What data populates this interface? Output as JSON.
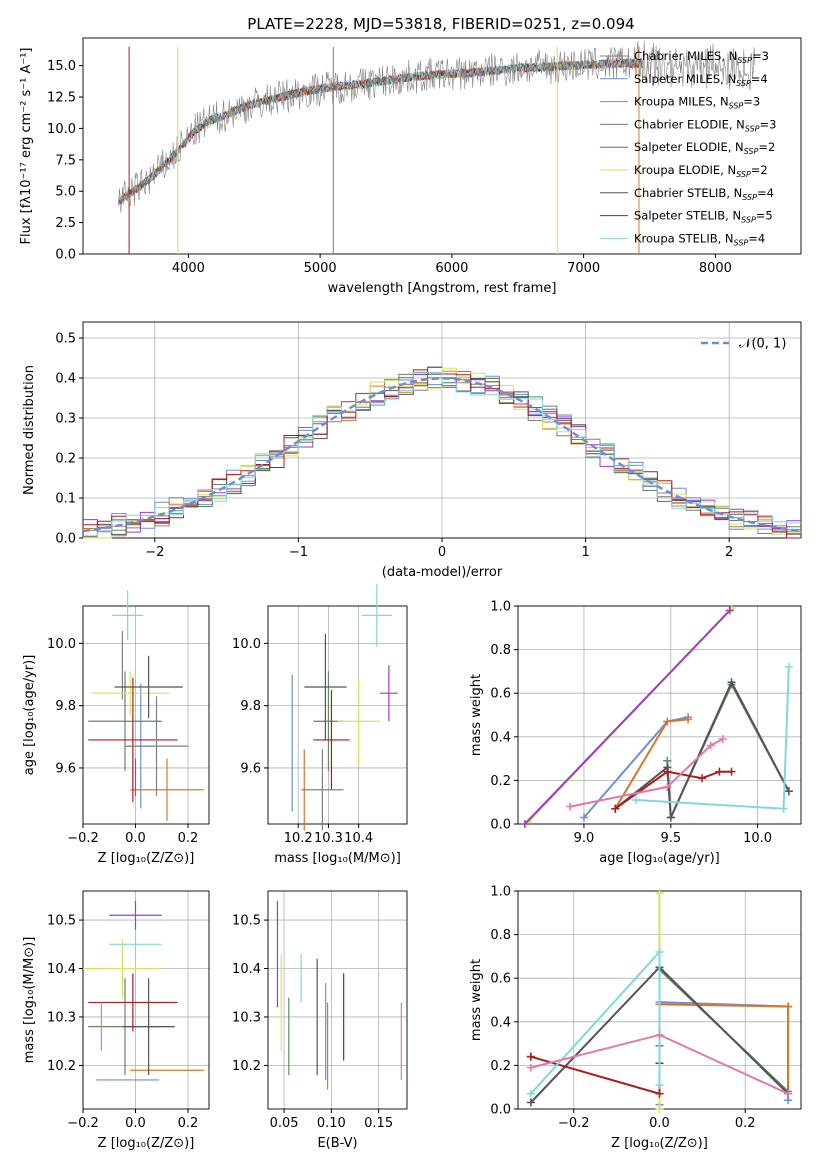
{
  "title": "PLATE=2228, MJD=53818, FIBERID=0251, z=0.094",
  "series": [
    {
      "label_main": "Chabrier MILES, N",
      "label_sub": "SSP",
      "label_val": "=3",
      "color": "#808080"
    },
    {
      "label_main": "Salpeter MILES, N",
      "label_sub": "SSP",
      "label_val": "=4",
      "color": "#6b8fd8"
    },
    {
      "label_main": "Kroupa MILES, N",
      "label_sub": "SSP",
      "label_val": "=3",
      "color": "#d9782a"
    },
    {
      "label_main": "Chabrier ELODIE, N",
      "label_sub": "SSP",
      "label_val": "=3",
      "color": "#5e8a62"
    },
    {
      "label_main": "Salpeter ELODIE, N",
      "label_sub": "SSP",
      "label_val": "=2",
      "color": "#a03ac8"
    },
    {
      "label_main": "Kroupa ELODIE, N",
      "label_sub": "SSP",
      "label_val": "=2",
      "color": "#d8e25a"
    },
    {
      "label_main": "Chabrier STELIB, N",
      "label_sub": "SSP",
      "label_val": "=4",
      "color": "#555555"
    },
    {
      "label_main": "Salpeter STELIB, N",
      "label_sub": "SSP",
      "label_val": "=5",
      "color": "#b01a1a"
    },
    {
      "label_main": "Kroupa STELIB, N",
      "label_sub": "SSP",
      "label_val": "=4",
      "color": "#7fd8dc"
    }
  ],
  "chart_data": [
    {
      "id": "spectrum",
      "type": "line",
      "xlabel": "wavelength [Angstrom, rest frame]",
      "ylabel": "Flux [fλ10⁻¹⁷ erg cm⁻² s⁻¹ A⁻¹]",
      "xlim": [
        3200,
        8650
      ],
      "ylim": [
        0,
        17.2
      ],
      "xticks": [
        4000,
        5000,
        6000,
        7000,
        8000
      ],
      "yticks": [
        0.0,
        2.5,
        5.0,
        7.5,
        10.0,
        12.5,
        15.0
      ],
      "x": [
        3470,
        3550,
        3650,
        3750,
        3850,
        3950,
        4050,
        4150,
        4250,
        4350,
        4450,
        4550,
        4700,
        4900,
        5100,
        5300,
        5500,
        5700,
        5900,
        6100,
        6300,
        6500,
        6700,
        6900,
        7100,
        7300,
        7500,
        7700,
        7900,
        8100,
        8300
      ],
      "y": [
        4.2,
        4.8,
        5.5,
        6.4,
        7.4,
        8.6,
        9.8,
        10.6,
        10.9,
        11.4,
        11.8,
        12.1,
        12.5,
        13.0,
        13.3,
        13.5,
        13.8,
        14.1,
        14.3,
        14.4,
        14.6,
        14.8,
        14.9,
        15.0,
        15.1,
        15.2,
        15.1,
        15.0,
        14.9,
        14.8,
        14.7
      ],
      "grid": false,
      "legend": "right"
    },
    {
      "id": "residuals",
      "type": "histogram",
      "xlabel": "(data-model)/error",
      "ylabel": "Normed distribution",
      "xlim": [
        -2.5,
        2.5
      ],
      "ylim": [
        0,
        0.54
      ],
      "xticks": [
        -2,
        -1,
        0,
        1,
        2
      ],
      "yticks": [
        0.0,
        0.1,
        0.2,
        0.3,
        0.4,
        0.5
      ],
      "bin_width": 0.1,
      "reference_curve": {
        "label": "𝒩(0, 1)",
        "mean": 0,
        "sigma": 1,
        "color": "#6a8fd8"
      },
      "grid": true,
      "legend": "top-right"
    },
    {
      "id": "age_vs_Z",
      "type": "scatter",
      "xlabel": "Z [log₁₀(Z/Z⊙)]",
      "ylabel": "age  [log₁₀(age/yr)]",
      "xlim": [
        -0.2,
        0.28
      ],
      "ylim": [
        9.42,
        10.12
      ],
      "xticks": [
        -0.2,
        0.0,
        0.2
      ],
      "yticks": [
        9.6,
        9.8,
        10.0
      ],
      "points": [
        {
          "s": 0,
          "x": -0.05,
          "y": 9.93,
          "xe": 0,
          "ye": 0.11
        },
        {
          "s": 1,
          "x": 0.02,
          "y": 9.67,
          "xe": 0.05,
          "ye": 0.2
        },
        {
          "s": 2,
          "x": 0.12,
          "y": 9.53,
          "xe": 0.14,
          "ye": 0.1
        },
        {
          "s": 3,
          "x": -0.04,
          "y": 9.75,
          "xe": 0.14,
          "ye": 0.16
        },
        {
          "s": 4,
          "x": 0.0,
          "y": 9.57,
          "xe": 0,
          "ye": 0.06
        },
        {
          "s": 5,
          "x": -0.02,
          "y": 9.84,
          "xe": 0.15,
          "ye": 0.07
        },
        {
          "s": 6,
          "x": 0.05,
          "y": 9.86,
          "xe": 0.13,
          "ye": 0.1
        },
        {
          "s": 7,
          "x": -0.01,
          "y": 9.69,
          "xe": 0.17,
          "ye": 0.2
        },
        {
          "s": 8,
          "x": -0.03,
          "y": 10.09,
          "xe": 0.06,
          "ye": 0.08
        },
        {
          "s": 0,
          "x": 0.08,
          "y": 9.67,
          "xe": 0.12,
          "ye": 0.16
        }
      ],
      "grid": true
    },
    {
      "id": "age_vs_mass",
      "type": "scatter",
      "xlabel": "mass [log₁₀(M/M⊙)]",
      "ylabel": "",
      "xlim": [
        10.1,
        10.56
      ],
      "ylim": [
        9.42,
        10.12
      ],
      "xticks": [
        10.2,
        10.3,
        10.4
      ],
      "yticks": [
        9.6,
        9.8,
        10.0
      ],
      "points": [
        {
          "s": 1,
          "x": 10.18,
          "y": 9.68,
          "xe": 0,
          "ye": 0.22
        },
        {
          "s": 2,
          "x": 10.22,
          "y": 9.53,
          "xe": 0.0,
          "ye": 0.13
        },
        {
          "s": 3,
          "x": 10.3,
          "y": 9.75,
          "xe": 0.05,
          "ye": 0.16
        },
        {
          "s": 4,
          "x": 10.5,
          "y": 9.84,
          "xe": 0.03,
          "ye": 0.09
        },
        {
          "s": 5,
          "x": 10.4,
          "y": 9.75,
          "xe": 0.07,
          "ye": 0.14
        },
        {
          "s": 6,
          "x": 10.29,
          "y": 9.86,
          "xe": 0.07,
          "ye": 0.17
        },
        {
          "s": 7,
          "x": 10.31,
          "y": 9.69,
          "xe": 0.06,
          "ye": 0.16
        },
        {
          "s": 8,
          "x": 10.46,
          "y": 10.09,
          "xe": 0.05,
          "ye": 0.1
        },
        {
          "s": 0,
          "x": 10.28,
          "y": 9.53,
          "xe": 0.07,
          "ye": 0.13
        }
      ],
      "grid": true
    },
    {
      "id": "weight_vs_age",
      "type": "line",
      "xlabel": "age  [log₁₀(age/yr)]",
      "ylabel": "mass weight",
      "xlim": [
        8.62,
        10.25
      ],
      "ylim": [
        0,
        1
      ],
      "xticks": [
        9.0,
        9.5,
        10.0
      ],
      "yticks": [
        0.0,
        0.2,
        0.4,
        0.6,
        0.8,
        1.0
      ],
      "lines": [
        {
          "s": 1,
          "x": [
            9.0,
            9.48,
            9.6
          ],
          "y": [
            0.03,
            0.47,
            0.49
          ]
        },
        {
          "s": 2,
          "x": [
            9.18,
            9.48,
            9.6
          ],
          "y": [
            0.07,
            0.47,
            0.48
          ]
        },
        {
          "s": 3,
          "x": [
            9.48,
            9.5,
            9.85,
            10.18
          ],
          "y": [
            0.29,
            0.03,
            0.64,
            0.15
          ]
        },
        {
          "s": 5,
          "x": [
            8.68,
            9.85
          ],
          "y": [
            0.01,
            0.99
          ]
        },
        {
          "s": 4,
          "x": [
            8.66,
            9.84
          ],
          "y": [
            0.0,
            0.98
          ]
        },
        {
          "s": 6,
          "x": [
            9.18,
            9.48,
            9.5,
            9.85,
            10.18
          ],
          "y": [
            0.07,
            0.26,
            0.03,
            0.65,
            0.15
          ]
        },
        {
          "s": 7,
          "x": [
            9.18,
            9.48,
            9.68,
            9.78,
            9.85
          ],
          "y": [
            0.07,
            0.24,
            0.21,
            0.24,
            0.24
          ]
        },
        {
          "s": 8,
          "x": [
            9.3,
            10.15,
            10.18
          ],
          "y": [
            0.11,
            0.07,
            0.72
          ]
        },
        {
          "s": 9,
          "x": [
            8.92,
            9.48,
            9.73,
            9.8
          ],
          "y": [
            0.08,
            0.17,
            0.36,
            0.39
          ]
        }
      ],
      "grid": true
    },
    {
      "id": "mass_vs_Z",
      "type": "scatter",
      "xlabel": "Z [log₁₀(Z/Z⊙)]",
      "ylabel": "mass [log₁₀(M/M⊙)]",
      "xlim": [
        -0.2,
        0.28
      ],
      "ylim": [
        10.11,
        10.56
      ],
      "xticks": [
        -0.2,
        0.0,
        0.2
      ],
      "yticks": [
        10.2,
        10.3,
        10.4,
        10.5
      ],
      "points": [
        {
          "s": 1,
          "x": -0.03,
          "y": 10.17,
          "xe": 0.12,
          "ye": 0
        },
        {
          "s": 2,
          "x": 0.12,
          "y": 10.19,
          "xe": 0.14,
          "ye": 0
        },
        {
          "s": 3,
          "x": -0.04,
          "y": 10.28,
          "xe": 0.14,
          "ye": 0.1
        },
        {
          "s": 4,
          "x": 0.0,
          "y": 10.51,
          "xe": 0.1,
          "ye": 0.03
        },
        {
          "s": 5,
          "x": -0.05,
          "y": 10.4,
          "xe": 0.15,
          "ye": 0.06
        },
        {
          "s": 6,
          "x": 0.05,
          "y": 10.28,
          "xe": 0.1,
          "ye": 0.1
        },
        {
          "s": 7,
          "x": -0.01,
          "y": 10.33,
          "xe": 0.17,
          "ye": 0.06
        },
        {
          "s": 8,
          "x": 0.0,
          "y": 10.45,
          "xe": 0.1,
          "ye": 0.03
        },
        {
          "s": 9,
          "x": -0.13,
          "y": 10.28,
          "xe": 0,
          "ye": 0.05
        }
      ],
      "grid": true
    },
    {
      "id": "mass_vs_EBV",
      "type": "scatter",
      "xlabel": "E(B-V)",
      "ylabel": "",
      "xlim": [
        0.033,
        0.18
      ],
      "ylim": [
        10.11,
        10.56
      ],
      "xticks": [
        0.05,
        0.1,
        0.15
      ],
      "yticks": [
        10.2,
        10.3,
        10.4,
        10.5
      ],
      "points": [
        {
          "s": 4,
          "x": 0.043,
          "y": 10.43,
          "ye": 0.11
        },
        {
          "s": 5,
          "x": 0.047,
          "y": 10.33,
          "ye": 0.1
        },
        {
          "s": 3,
          "x": 0.055,
          "y": 10.26,
          "ye": 0.08
        },
        {
          "s": 8,
          "x": 0.068,
          "y": 10.38,
          "ye": 0.05
        },
        {
          "s": 6,
          "x": 0.085,
          "y": 10.3,
          "ye": 0.12
        },
        {
          "s": 1,
          "x": 0.094,
          "y": 10.27,
          "ye": 0.1
        },
        {
          "s": 2,
          "x": 0.096,
          "y": 10.24,
          "ye": 0.09
        },
        {
          "s": 7,
          "x": 0.113,
          "y": 10.3,
          "ye": 0.09
        },
        {
          "s": 9,
          "x": 0.174,
          "y": 10.25,
          "ye": 0.08
        }
      ],
      "grid": true
    },
    {
      "id": "weight_vs_Z",
      "type": "line",
      "xlabel": "Z [log₁₀(Z/Z⊙)]",
      "ylabel": "mass weight",
      "xlim": [
        -0.33,
        0.33
      ],
      "ylim": [
        0,
        1
      ],
      "xticks": [
        -0.2,
        0.0,
        0.2
      ],
      "yticks": [
        0.0,
        0.2,
        0.4,
        0.6,
        0.8,
        1.0
      ],
      "lines": [
        {
          "s": 1,
          "x": [
            0.0,
            0.0,
            0.3,
            0.3
          ],
          "y": [
            0.02,
            0.49,
            0.47,
            0.04
          ]
        },
        {
          "s": 2,
          "x": [
            0.0,
            0.0,
            0.3,
            0.3
          ],
          "y": [
            0.07,
            0.48,
            0.47,
            0.07
          ]
        },
        {
          "s": 3,
          "x": [
            0.0,
            0.0,
            0.3
          ],
          "y": [
            0.29,
            0.64,
            0.08
          ]
        },
        {
          "s": 5,
          "x": [
            0.0,
            0.0
          ],
          "y": [
            0.0,
            0.99
          ]
        },
        {
          "s": 6,
          "x": [
            -0.3,
            0.0,
            0.3
          ],
          "y": [
            0.03,
            0.65,
            0.07
          ]
        },
        {
          "s": 7,
          "x": [
            -0.3,
            -0.3,
            0.0,
            0.0
          ],
          "y": [
            0.24,
            0.24,
            0.07,
            0.21
          ]
        },
        {
          "s": 8,
          "x": [
            -0.3,
            0.0,
            0.0
          ],
          "y": [
            0.07,
            0.72,
            0.11
          ]
        },
        {
          "s": 9,
          "x": [
            -0.3,
            0.0,
            0.3
          ],
          "y": [
            0.19,
            0.34,
            0.07
          ]
        }
      ],
      "grid": true
    }
  ]
}
